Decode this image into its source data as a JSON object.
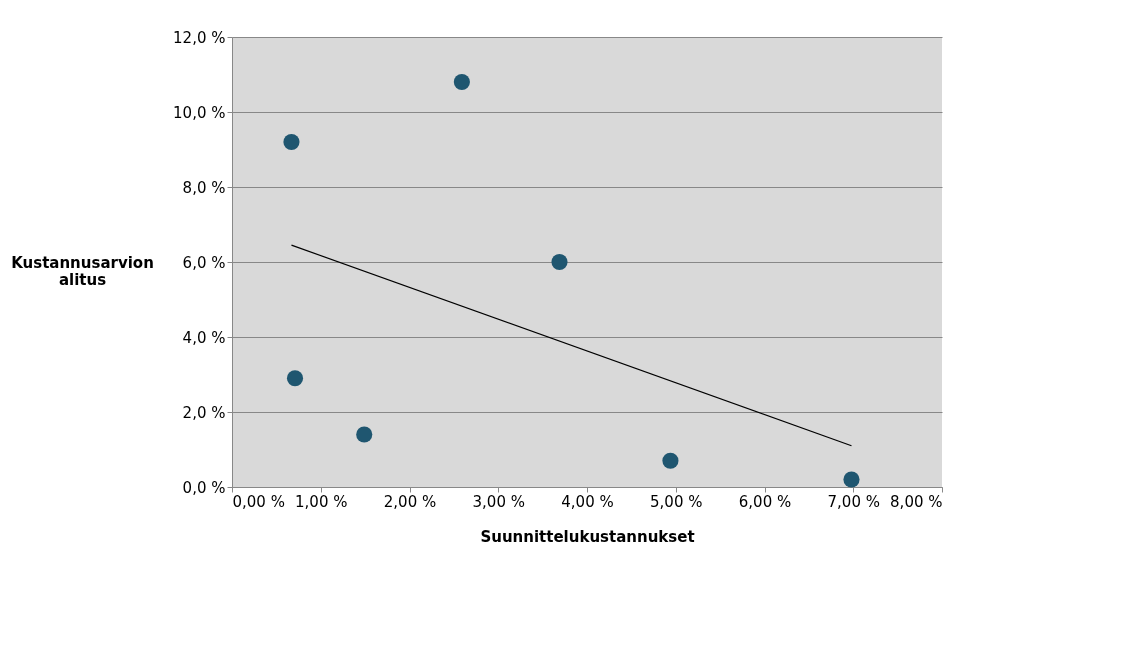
{
  "chart_data": {
    "type": "scatter",
    "xlabel": "Suunnittelukustannukset",
    "ylabel": "Kustannusarvion alitus",
    "xlim": [
      0,
      8
    ],
    "ylim": [
      0,
      12
    ],
    "xticks": [
      {
        "value": 0,
        "label": "0,00 %"
      },
      {
        "value": 1,
        "label": "1,00 %"
      },
      {
        "value": 2,
        "label": "2,00 %"
      },
      {
        "value": 3,
        "label": "3,00 %"
      },
      {
        "value": 4,
        "label": "4,00 %"
      },
      {
        "value": 5,
        "label": "5,00 %"
      },
      {
        "value": 6,
        "label": "6,00 %"
      },
      {
        "value": 7,
        "label": "7,00 %"
      },
      {
        "value": 8,
        "label": "8,00 %"
      }
    ],
    "yticks": [
      {
        "value": 0,
        "label": "0,0 %"
      },
      {
        "value": 2,
        "label": "2,0 %"
      },
      {
        "value": 4,
        "label": "4,0 %"
      },
      {
        "value": 6,
        "label": "6,0 %"
      },
      {
        "value": 8,
        "label": "8,0 %"
      },
      {
        "value": 10,
        "label": "10,0 %"
      },
      {
        "value": 12,
        "label": "12,0 %"
      }
    ],
    "grid": "y",
    "legend": false,
    "series": [
      {
        "marker": "circle",
        "color": "#1f5670",
        "x": [
          0.67,
          0.71,
          1.49,
          2.59,
          3.69,
          4.94,
          6.98
        ],
        "values": [
          9.2,
          2.9,
          1.4,
          10.8,
          6.0,
          0.7,
          0.2
        ]
      },
      {
        "type": "line",
        "color": "#000000",
        "x": [
          0.67,
          6.98
        ],
        "values": [
          6.45,
          1.1
        ]
      }
    ]
  }
}
